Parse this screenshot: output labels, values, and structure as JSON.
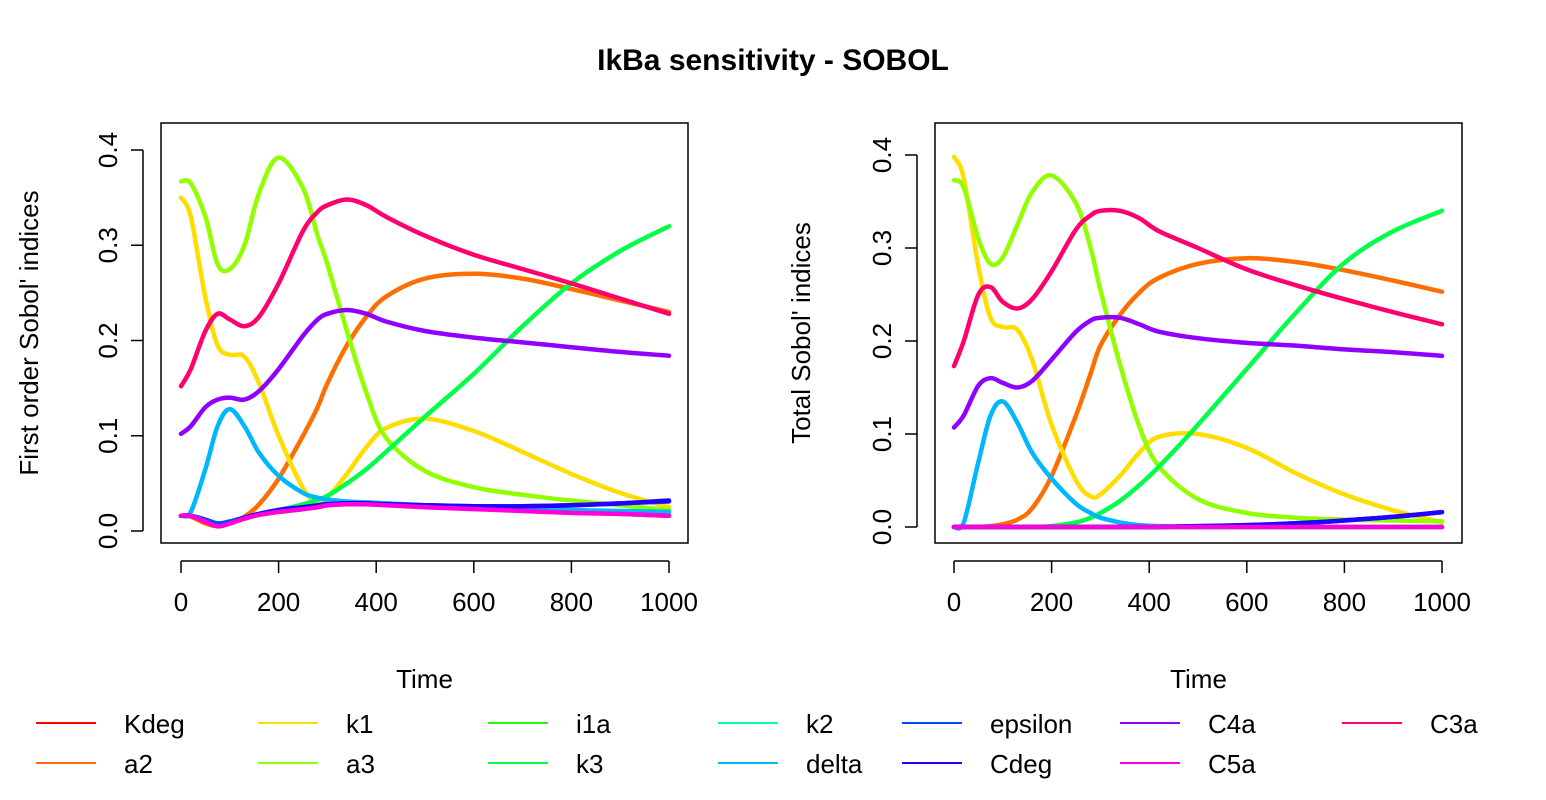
{
  "figure_title": "IkBa sensitivity - SOBOL",
  "chart_data": [
    {
      "type": "line",
      "xlabel": "Time",
      "ylabel": "First order Sobol' indices",
      "xlim": [
        0,
        1000
      ],
      "ylim": [
        0,
        0.42
      ],
      "xticks": [
        "0",
        "200",
        "400",
        "600",
        "800",
        "1000"
      ],
      "yticks": [
        "0.0",
        "0.1",
        "0.2",
        "0.3",
        "0.4"
      ],
      "x": [
        0,
        20,
        50,
        75,
        100,
        130,
        160,
        200,
        250,
        280,
        300,
        340,
        380,
        420,
        500,
        600,
        700,
        800,
        900,
        1000
      ],
      "series": [
        {
          "name": "Kdeg",
          "color": "#FF0000",
          "values": [
            0.016,
            0.016,
            0.01,
            0.005,
            0.008,
            0.013,
            0.017,
            0.02,
            0.023,
            0.025,
            0.027,
            0.029,
            0.029,
            0.028,
            0.026,
            0.024,
            0.022,
            0.02,
            0.018,
            0.016
          ]
        },
        {
          "name": "a2",
          "color": "#FF6E00",
          "values": [
            0.016,
            0.015,
            0.008,
            0.005,
            0.008,
            0.015,
            0.028,
            0.055,
            0.1,
            0.13,
            0.155,
            0.195,
            0.225,
            0.246,
            0.265,
            0.27,
            0.265,
            0.254,
            0.242,
            0.23
          ]
        },
        {
          "name": "k1",
          "color": "#FFDD00",
          "values": [
            0.35,
            0.33,
            0.245,
            0.195,
            0.185,
            0.183,
            0.155,
            0.1,
            0.045,
            0.03,
            0.035,
            0.06,
            0.088,
            0.108,
            0.118,
            0.105,
            0.083,
            0.06,
            0.04,
            0.025
          ]
        },
        {
          "name": "a3",
          "color": "#91FF00",
          "values": [
            0.367,
            0.365,
            0.33,
            0.28,
            0.275,
            0.3,
            0.355,
            0.392,
            0.36,
            0.31,
            0.28,
            0.21,
            0.145,
            0.098,
            0.063,
            0.046,
            0.038,
            0.032,
            0.027,
            0.022
          ]
        },
        {
          "name": "i1a",
          "color": "#23FF00",
          "values": [
            0.016,
            0.016,
            0.012,
            0.008,
            0.01,
            0.014,
            0.018,
            0.02,
            0.023,
            0.025,
            0.027,
            0.029,
            0.029,
            0.028,
            0.026,
            0.024,
            0.022,
            0.02,
            0.018,
            0.016
          ]
        },
        {
          "name": "k3",
          "color": "#00FF48",
          "values": [
            0.016,
            0.016,
            0.012,
            0.008,
            0.01,
            0.014,
            0.018,
            0.022,
            0.028,
            0.033,
            0.037,
            0.05,
            0.065,
            0.083,
            0.12,
            0.165,
            0.215,
            0.26,
            0.294,
            0.32
          ]
        },
        {
          "name": "k2",
          "color": "#00FFB6",
          "values": [
            0.016,
            0.016,
            0.012,
            0.008,
            0.01,
            0.014,
            0.018,
            0.022,
            0.025,
            0.027,
            0.029,
            0.03,
            0.03,
            0.029,
            0.027,
            0.025,
            0.024,
            0.022,
            0.02,
            0.018
          ]
        },
        {
          "name": "delta",
          "color": "#00B6FF",
          "values": [
            0.016,
            0.02,
            0.065,
            0.11,
            0.128,
            0.11,
            0.082,
            0.058,
            0.04,
            0.035,
            0.033,
            0.031,
            0.03,
            0.029,
            0.027,
            0.025,
            0.024,
            0.022,
            0.021,
            0.02
          ]
        },
        {
          "name": "epsilon",
          "color": "#0048FF",
          "values": [
            0.016,
            0.016,
            0.012,
            0.008,
            0.01,
            0.014,
            0.018,
            0.022,
            0.025,
            0.027,
            0.028,
            0.029,
            0.029,
            0.028,
            0.027,
            0.026,
            0.026,
            0.027,
            0.029,
            0.031
          ]
        },
        {
          "name": "Cdeg",
          "color": "#2300FF",
          "values": [
            0.016,
            0.016,
            0.01,
            0.005,
            0.008,
            0.014,
            0.018,
            0.022,
            0.025,
            0.027,
            0.028,
            0.029,
            0.029,
            0.028,
            0.027,
            0.026,
            0.026,
            0.027,
            0.029,
            0.032
          ]
        },
        {
          "name": "C4a",
          "color": "#9100FF",
          "values": [
            0.102,
            0.11,
            0.13,
            0.138,
            0.14,
            0.138,
            0.147,
            0.17,
            0.205,
            0.222,
            0.228,
            0.232,
            0.228,
            0.22,
            0.21,
            0.203,
            0.198,
            0.193,
            0.188,
            0.184
          ]
        },
        {
          "name": "C5a",
          "color": "#FF00DD",
          "values": [
            0.016,
            0.016,
            0.01,
            0.005,
            0.008,
            0.013,
            0.017,
            0.02,
            0.023,
            0.025,
            0.027,
            0.028,
            0.028,
            0.027,
            0.025,
            0.023,
            0.021,
            0.019,
            0.018,
            0.016
          ]
        },
        {
          "name": "C3a",
          "color": "#FF006E",
          "values": [
            0.152,
            0.17,
            0.21,
            0.228,
            0.222,
            0.215,
            0.225,
            0.26,
            0.315,
            0.335,
            0.342,
            0.348,
            0.342,
            0.33,
            0.31,
            0.29,
            0.275,
            0.26,
            0.244,
            0.228
          ]
        }
      ]
    },
    {
      "type": "line",
      "xlabel": "Time",
      "ylabel": "Total Sobol' indices",
      "xlim": [
        0,
        1000
      ],
      "ylim": [
        0,
        0.42
      ],
      "xticks": [
        "0",
        "200",
        "400",
        "600",
        "800",
        "1000"
      ],
      "yticks": [
        "0.0",
        "0.1",
        "0.2",
        "0.3",
        "0.4"
      ],
      "x": [
        0,
        20,
        50,
        75,
        100,
        130,
        160,
        200,
        250,
        280,
        300,
        340,
        380,
        420,
        500,
        600,
        700,
        800,
        900,
        1000
      ],
      "series": [
        {
          "name": "Kdeg",
          "color": "#FF0000",
          "values": [
            0,
            0,
            0,
            0,
            0,
            0,
            0,
            0,
            0,
            0,
            0,
            0,
            0,
            0,
            0,
            0,
            0,
            0,
            0,
            0
          ]
        },
        {
          "name": "a2",
          "color": "#FF6E00",
          "values": [
            0,
            0,
            0,
            0.001,
            0.003,
            0.008,
            0.02,
            0.055,
            0.12,
            0.165,
            0.195,
            0.228,
            0.252,
            0.268,
            0.283,
            0.289,
            0.285,
            0.276,
            0.265,
            0.253
          ]
        },
        {
          "name": "k1",
          "color": "#FFDD00",
          "values": [
            0.398,
            0.375,
            0.28,
            0.225,
            0.215,
            0.212,
            0.18,
            0.11,
            0.05,
            0.033,
            0.035,
            0.055,
            0.08,
            0.097,
            0.1,
            0.085,
            0.058,
            0.035,
            0.018,
            0.005
          ]
        },
        {
          "name": "a3",
          "color": "#91FF00",
          "values": [
            0.373,
            0.365,
            0.31,
            0.283,
            0.29,
            0.325,
            0.36,
            0.378,
            0.348,
            0.3,
            0.255,
            0.175,
            0.108,
            0.065,
            0.03,
            0.015,
            0.01,
            0.008,
            0.007,
            0.006
          ]
        },
        {
          "name": "i1a",
          "color": "#23FF00",
          "values": [
            0,
            0,
            0,
            0,
            0,
            0,
            0,
            0,
            0,
            0,
            0,
            0,
            0,
            0,
            0,
            0,
            0,
            0,
            0,
            0
          ]
        },
        {
          "name": "k3",
          "color": "#00FF48",
          "values": [
            0,
            0,
            0,
            0,
            0,
            0,
            0,
            0.001,
            0.005,
            0.01,
            0.015,
            0.028,
            0.045,
            0.065,
            0.11,
            0.17,
            0.23,
            0.284,
            0.318,
            0.34
          ]
        },
        {
          "name": "k2",
          "color": "#00FFB6",
          "values": [
            0,
            0,
            0,
            0,
            0,
            0,
            0,
            0,
            0,
            0,
            0,
            0,
            0,
            0,
            0,
            0,
            0,
            0,
            0,
            0
          ]
        },
        {
          "name": "delta",
          "color": "#00B6FF",
          "values": [
            0,
            0.005,
            0.07,
            0.12,
            0.135,
            0.112,
            0.08,
            0.052,
            0.025,
            0.015,
            0.01,
            0.005,
            0.002,
            0.001,
            0,
            0,
            0,
            0,
            0,
            0
          ]
        },
        {
          "name": "epsilon",
          "color": "#0048FF",
          "values": [
            0,
            0,
            0,
            0,
            0,
            0,
            0,
            0,
            0,
            0,
            0,
            0,
            0,
            0,
            0.001,
            0.002,
            0.004,
            0.007,
            0.011,
            0.016
          ]
        },
        {
          "name": "Cdeg",
          "color": "#2300FF",
          "values": [
            0,
            0,
            0,
            0,
            0,
            0,
            0,
            0,
            0,
            0,
            0,
            0,
            0,
            0,
            0.001,
            0.002,
            0.004,
            0.007,
            0.011,
            0.016
          ]
        },
        {
          "name": "C4a",
          "color": "#9100FF",
          "values": [
            0.107,
            0.12,
            0.152,
            0.16,
            0.155,
            0.15,
            0.157,
            0.18,
            0.21,
            0.222,
            0.225,
            0.225,
            0.218,
            0.21,
            0.203,
            0.198,
            0.195,
            0.191,
            0.188,
            0.184
          ]
        },
        {
          "name": "C5a",
          "color": "#FF00DD",
          "values": [
            0,
            0,
            0,
            0,
            0,
            0,
            0,
            0,
            0,
            0,
            0,
            0,
            0,
            0,
            0,
            0,
            0,
            0,
            0,
            0
          ]
        },
        {
          "name": "C3a",
          "color": "#FF006E",
          "values": [
            0.173,
            0.2,
            0.25,
            0.258,
            0.242,
            0.235,
            0.245,
            0.275,
            0.32,
            0.335,
            0.34,
            0.34,
            0.332,
            0.318,
            0.3,
            0.277,
            0.26,
            0.245,
            0.231,
            0.218
          ]
        }
      ]
    }
  ],
  "legend": {
    "placement": "bottom",
    "items": [
      {
        "name": "Kdeg",
        "color": "#FF0000"
      },
      {
        "name": "a2",
        "color": "#FF6E00"
      },
      {
        "name": "k1",
        "color": "#FFDD00"
      },
      {
        "name": "a3",
        "color": "#91FF00"
      },
      {
        "name": "i1a",
        "color": "#23FF00"
      },
      {
        "name": "k3",
        "color": "#00FF48"
      },
      {
        "name": "k2",
        "color": "#00FFB6"
      },
      {
        "name": "delta",
        "color": "#00B6FF"
      },
      {
        "name": "epsilon",
        "color": "#0048FF"
      },
      {
        "name": "Cdeg",
        "color": "#2300FF"
      },
      {
        "name": "C4a",
        "color": "#9100FF"
      },
      {
        "name": "C5a",
        "color": "#FF00DD"
      },
      {
        "name": "C3a",
        "color": "#FF006E"
      }
    ]
  }
}
